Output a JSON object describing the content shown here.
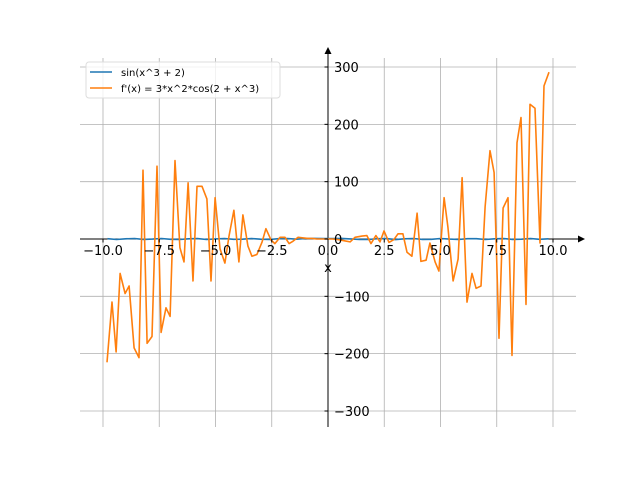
{
  "chart_data": {
    "type": "line",
    "title": "",
    "xlabel": "x",
    "ylabel": "",
    "xlim": [
      -11,
      11
    ],
    "ylim": [
      -320,
      320
    ],
    "grid": true,
    "legend_position": "top-left",
    "x_ticks": [
      -10.0,
      -7.5,
      -5.0,
      -2.5,
      0.0,
      2.5,
      5.0,
      7.5,
      10.0
    ],
    "x_tick_labels": [
      "−10.0",
      "−7.5",
      "−5.0",
      "−2.5",
      "0.0",
      "2.5",
      "5.0",
      "7.5",
      "10.0"
    ],
    "y_ticks": [
      -300,
      -200,
      -100,
      0,
      100,
      200,
      300
    ],
    "y_tick_labels": [
      "−300",
      "−200",
      "−100",
      "0",
      "100",
      "200",
      "300"
    ],
    "series": [
      {
        "name": "sin(x^3 + 2)",
        "color": "#1f77b4",
        "x": [
          -9.8,
          -9.4,
          -9.0,
          -8.6,
          -8.2,
          -7.8,
          -7.4,
          -7.0,
          -6.6,
          -6.2,
          -5.8,
          -5.4,
          -5.0,
          -4.6,
          -4.2,
          -3.8,
          -3.4,
          -3.0,
          -2.6,
          -2.2,
          -1.8,
          -1.4,
          -1.0,
          -0.6,
          -0.2,
          0.2,
          0.6,
          1.0,
          1.4,
          1.8,
          2.2,
          2.6,
          3.0,
          3.4,
          3.8,
          4.2,
          4.6,
          5.0,
          5.4,
          5.8,
          6.2,
          6.6,
          7.0,
          7.4,
          7.8,
          8.2,
          8.6,
          9.0,
          9.4,
          9.8
        ],
        "y": [
          0.6,
          -0.9,
          0.3,
          0.8,
          -0.7,
          -0.2,
          0.9,
          -0.5,
          -0.8,
          0.4,
          0.7,
          -0.9,
          0.2,
          0.9,
          -0.6,
          -0.4,
          0.95,
          -0.3,
          -0.9,
          0.5,
          0.9,
          -0.3,
          0.84,
          0.98,
          0.91,
          0.91,
          0.98,
          0.14,
          -0.65,
          -0.9,
          0.6,
          0.7,
          -0.96,
          0.4,
          0.8,
          -0.7,
          -0.5,
          0.9,
          -0.2,
          -0.9,
          0.6,
          0.5,
          -0.9,
          0.3,
          0.8,
          -0.7,
          -0.4,
          0.9,
          -0.6,
          0.3
        ]
      },
      {
        "name": "f'(x) = 3*x^2*cos(2 + x^3)",
        "color": "#ff7f0e",
        "x": [
          -9.82,
          -9.6,
          -9.42,
          -9.24,
          -9.02,
          -8.84,
          -8.62,
          -8.4,
          -8.22,
          -8.04,
          -7.82,
          -7.6,
          -7.42,
          -7.2,
          -7.02,
          -6.8,
          -6.58,
          -6.4,
          -6.22,
          -6.0,
          -5.82,
          -5.6,
          -5.38,
          -5.2,
          -5.02,
          -4.8,
          -4.58,
          -4.4,
          -4.18,
          -3.96,
          -3.78,
          -3.56,
          -3.38,
          -3.16,
          -2.93,
          -2.76,
          -2.53,
          -2.36,
          -2.13,
          -1.91,
          -1.73,
          -1.56,
          -1.33,
          -1.1,
          -0.9,
          -0.7,
          -0.5,
          -0.3,
          -0.1,
          0.2,
          0.45,
          0.7,
          0.98,
          1.2,
          1.51,
          1.73,
          1.91,
          2.13,
          2.31,
          2.49,
          2.71,
          2.93,
          3.11,
          3.33,
          3.51,
          3.73,
          3.96,
          4.13,
          4.36,
          4.53,
          4.76,
          4.93,
          5.16,
          5.33,
          5.56,
          5.78,
          5.96,
          6.18,
          6.4,
          6.58,
          6.8,
          6.98,
          7.2,
          7.38,
          7.6,
          7.78,
          8.0,
          8.18,
          8.4,
          8.58,
          8.8,
          8.98,
          9.2,
          9.42,
          9.6,
          9.82
        ],
        "y": [
          -215,
          -110,
          -197,
          -60,
          -95,
          -82,
          -190,
          -207,
          120,
          -182,
          -170,
          127,
          -163,
          -120,
          -135,
          137,
          -15,
          -40,
          98,
          -73,
          92,
          92,
          70,
          -73,
          72,
          -17,
          -42,
          5,
          50,
          -40,
          42,
          -12,
          -30,
          -27,
          -5,
          18,
          -2,
          -8,
          3,
          3,
          -8,
          -4,
          3,
          2,
          1,
          1,
          0,
          0,
          0,
          0,
          -1,
          -3,
          -5,
          3,
          5,
          6,
          -8,
          6,
          -5,
          14,
          -6,
          -1,
          9,
          9,
          -23,
          -30,
          45,
          -39,
          -37,
          -7,
          -40,
          -56,
          72,
          21,
          -73,
          -35,
          107,
          -110,
          -60,
          -86,
          -82,
          56,
          154,
          116,
          -173,
          54,
          72,
          -203,
          168,
          212,
          -114,
          235,
          228,
          -7,
          267,
          291
        ]
      }
    ]
  }
}
